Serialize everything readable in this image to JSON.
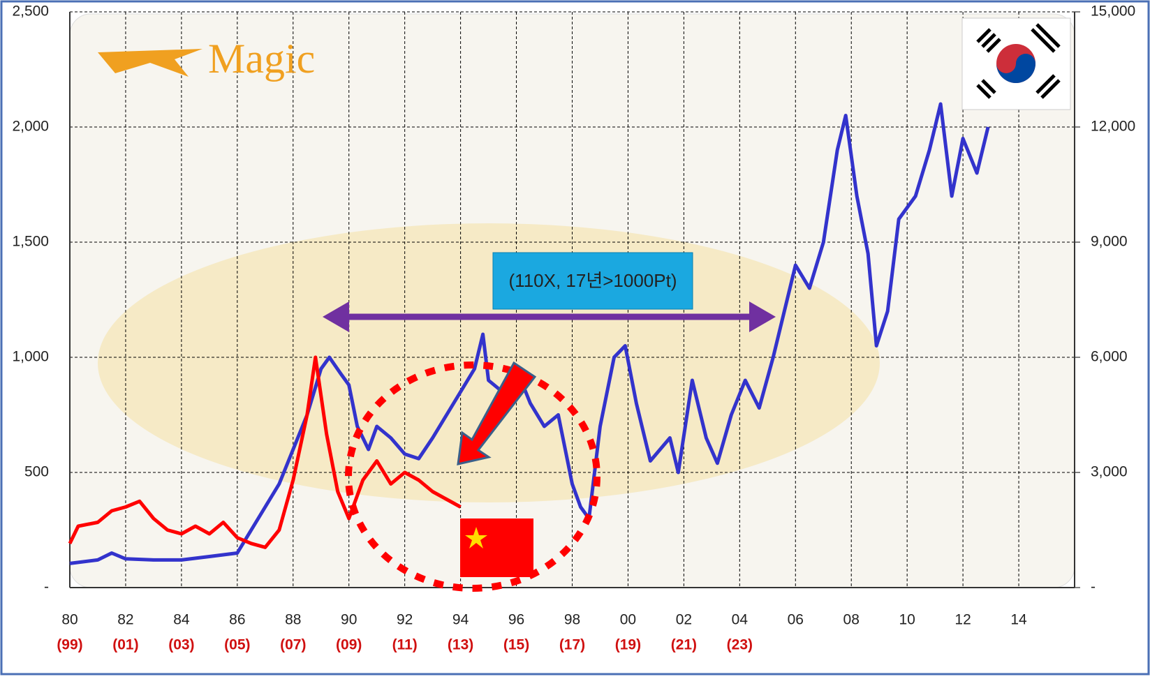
{
  "chart_data": {
    "type": "line",
    "logo": "Magic",
    "annotation": "(110X, 17년>1000Pt)",
    "xlim": [
      1980,
      2016
    ],
    "xticks": [
      {
        "value": 1980,
        "label": "80"
      },
      {
        "value": 1982,
        "label": "82"
      },
      {
        "value": 1984,
        "label": "84"
      },
      {
        "value": 1986,
        "label": "86"
      },
      {
        "value": 1988,
        "label": "88"
      },
      {
        "value": 1990,
        "label": "90"
      },
      {
        "value": 1992,
        "label": "92"
      },
      {
        "value": 1994,
        "label": "94"
      },
      {
        "value": 1996,
        "label": "96"
      },
      {
        "value": 1998,
        "label": "98"
      },
      {
        "value": 2000,
        "label": "00"
      },
      {
        "value": 2002,
        "label": "02"
      },
      {
        "value": 2004,
        "label": "04"
      },
      {
        "value": 2006,
        "label": "06"
      },
      {
        "value": 2008,
        "label": "08"
      },
      {
        "value": 2010,
        "label": "10"
      },
      {
        "value": 2012,
        "label": "12"
      },
      {
        "value": 2014,
        "label": "14"
      }
    ],
    "x_sublabels": [
      "(99)",
      "(01)",
      "(03)",
      "(05)",
      "(07)",
      "(09)",
      "(11)",
      "(13)",
      "(15)",
      "(17)",
      "(19)",
      "(21)",
      "(23)"
    ],
    "ylim": [
      0,
      2500
    ],
    "yticks": [
      {
        "value": 0,
        "label": "-"
      },
      500,
      {
        "value": 1000,
        "label": "1,000"
      },
      {
        "value": 1500,
        "label": "1,500"
      },
      {
        "value": 2000,
        "label": "2,000"
      },
      {
        "value": 2500,
        "label": "2,500"
      }
    ],
    "y2lim": [
      0,
      15000
    ],
    "y2ticks": [
      {
        "value": 0,
        "label": "-"
      },
      {
        "value": 3000,
        "label": "3,000"
      },
      {
        "value": 6000,
        "label": "6,000"
      },
      {
        "value": 9000,
        "label": "9,000"
      },
      {
        "value": 12000,
        "label": "12,000"
      },
      {
        "value": 15000,
        "label": "15,000"
      }
    ],
    "grid": true,
    "series": [
      {
        "color": "#3333cc",
        "axis": "y",
        "x": [
          1980,
          1981,
          1981.5,
          1982,
          1983,
          1984,
          1985,
          1986,
          1986.5,
          1987,
          1987.5,
          1988,
          1988.5,
          1989,
          1989.3,
          1989.7,
          1990,
          1990.3,
          1990.7,
          1991,
          1991.5,
          1992,
          1992.5,
          1993,
          1993.5,
          1994,
          1994.5,
          1994.8,
          1995,
          1995.5,
          1996,
          1996.5,
          1997,
          1997.5,
          1998,
          1998.3,
          1998.6,
          1999,
          1999.5,
          1999.9,
          2000.3,
          2000.8,
          2001.5,
          2001.8,
          2002.3,
          2002.8,
          2003.2,
          2003.7,
          2004.2,
          2004.7,
          2005.2,
          2005.8,
          2006,
          2006.5,
          2007,
          2007.5,
          2007.8,
          2008.2,
          2008.6,
          2008.9,
          2009.3,
          2009.7,
          2010.3,
          2010.8,
          2011.2,
          2011.6,
          2012,
          2012.5,
          2012.9
        ],
        "values": [
          105,
          120,
          150,
          125,
          120,
          120,
          135,
          150,
          250,
          350,
          450,
          600,
          750,
          950,
          1000,
          930,
          880,
          700,
          600,
          700,
          650,
          580,
          560,
          650,
          750,
          850,
          950,
          1100,
          900,
          850,
          950,
          800,
          700,
          750,
          450,
          350,
          300,
          700,
          1000,
          1050,
          800,
          550,
          650,
          500,
          900,
          650,
          540,
          750,
          900,
          780,
          1000,
          1300,
          1400,
          1300,
          1500,
          1900,
          2050,
          1700,
          1450,
          1050,
          1200,
          1600,
          1700,
          1900,
          2100,
          1700,
          1950,
          1800,
          2000
        ]
      },
      {
        "color": "#ff0000",
        "axis": "y2",
        "x": [
          1980,
          1980.3,
          1981,
          1981.5,
          1982,
          1982.5,
          1983,
          1983.5,
          1984,
          1984.5,
          1985,
          1985.5,
          1986,
          1986.5,
          1987,
          1987.5,
          1988,
          1988.5,
          1988.8,
          1989.2,
          1989.6,
          1990,
          1990.5,
          1991,
          1991.5,
          1992,
          1992.5,
          1993,
          1993.5,
          1994
        ],
        "values": [
          1150,
          1600,
          1700,
          2000,
          2100,
          2250,
          1800,
          1500,
          1400,
          1600,
          1400,
          1700,
          1300,
          1150,
          1050,
          1500,
          2800,
          4500,
          6000,
          4000,
          2500,
          1800,
          2800,
          3300,
          2700,
          3000,
          2800,
          2500,
          2300,
          2100
        ]
      }
    ]
  }
}
